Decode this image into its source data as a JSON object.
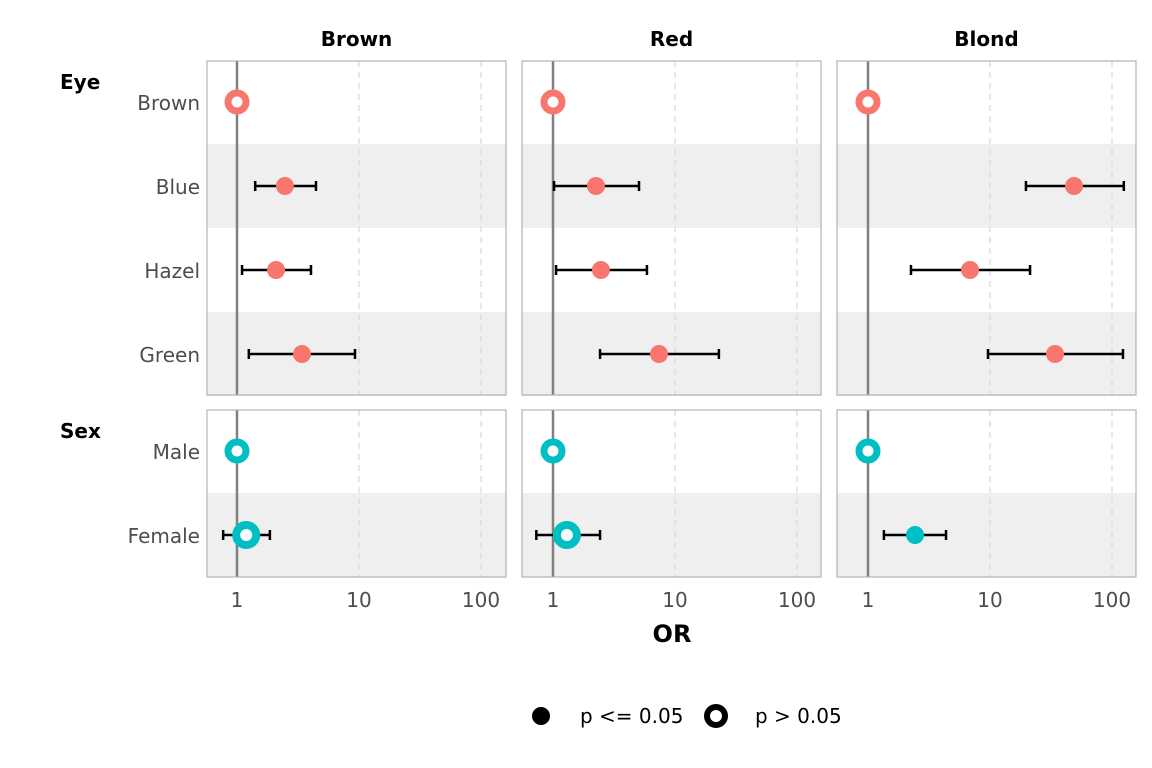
{
  "chart_data": {
    "type": "scatter",
    "subtype": "forest-plot",
    "xlabel": "OR",
    "xscale": "log10",
    "xlim": [
      0.57,
      160
    ],
    "xticks": [
      1,
      10,
      100
    ],
    "xtick_labels": [
      "1",
      "10",
      "100"
    ],
    "reference_line": 1,
    "columns": [
      "Brown",
      "Red",
      "Blond"
    ],
    "groups": [
      {
        "name": "Eye",
        "color": "#F8766D",
        "levels": [
          "Brown",
          "Blue",
          "Hazel",
          "Green"
        ]
      },
      {
        "name": "Sex",
        "color": "#00BFC4",
        "levels": [
          "Male",
          "Female"
        ]
      }
    ],
    "legend": {
      "position": "bottom",
      "items": [
        "p <= 0.05",
        "p > 0.05"
      ]
    },
    "points": {
      "Brown": {
        "Brown": {
          "or": 1,
          "ref": true
        },
        "Blue": {
          "or": 2.47,
          "lo": 1.41,
          "hi": 4.44,
          "sig": true
        },
        "Hazel": {
          "or": 2.09,
          "lo": 1.1,
          "hi": 4.04,
          "sig": true
        },
        "Green": {
          "or": 3.41,
          "lo": 1.25,
          "hi": 9.27,
          "sig": true
        },
        "Male": {
          "or": 1,
          "ref": true
        },
        "Female": {
          "or": 1.19,
          "lo": 0.77,
          "hi": 1.86,
          "sig": false
        }
      },
      "Red": {
        "Brown": {
          "or": 1,
          "ref": true
        },
        "Blue": {
          "or": 2.25,
          "lo": 1.02,
          "hi": 5.07,
          "sig": true
        },
        "Hazel": {
          "or": 2.47,
          "lo": 1.06,
          "hi": 5.89,
          "sig": true
        },
        "Green": {
          "or": 7.39,
          "lo": 2.43,
          "hi": 22.9,
          "sig": true
        },
        "Male": {
          "or": 1,
          "ref": true
        },
        "Female": {
          "or": 1.3,
          "lo": 0.73,
          "hi": 2.43,
          "sig": false
        }
      },
      "Blond": {
        "Brown": {
          "or": 1,
          "ref": true
        },
        "Blue": {
          "or": 48.8,
          "lo": 19.7,
          "hi": 125,
          "sig": true
        },
        "Hazel": {
          "or": 6.86,
          "lo": 2.25,
          "hi": 21.3,
          "sig": true
        },
        "Green": {
          "or": 34.1,
          "lo": 9.63,
          "hi": 123,
          "sig": true
        },
        "Male": {
          "or": 1,
          "ref": true
        },
        "Female": {
          "or": 2.43,
          "lo": 1.35,
          "hi": 4.36,
          "sig": true
        }
      }
    }
  }
}
